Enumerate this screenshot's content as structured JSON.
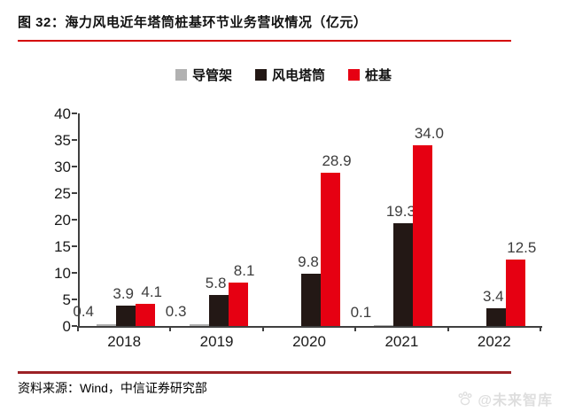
{
  "figure": {
    "title": "图 32：海力风电近年塔筒桩基环节业务营收情况（亿元）",
    "source_text": "资料来源：Wind，中信证券研究部",
    "watermark_text": "@未来智库"
  },
  "colors": {
    "title_underline": "#d40000",
    "source_rule": "#9c2126",
    "axis": "#404040",
    "value_label": "#3d3d3d",
    "watermark": "#dedede"
  },
  "chart_data": {
    "type": "bar",
    "title": "海力风电近年塔筒桩基环节业务营收情况（亿元）",
    "categories": [
      "2018",
      "2019",
      "2020",
      "2021",
      "2022"
    ],
    "series": [
      {
        "name": "导管架",
        "color": "#b1b1b1",
        "values": [
          0.4,
          0.3,
          null,
          0.1,
          null
        ]
      },
      {
        "name": "风电塔筒",
        "color": "#231815",
        "values": [
          3.9,
          5.8,
          9.8,
          19.3,
          3.4
        ]
      },
      {
        "name": "桩基",
        "color": "#e60012",
        "values": [
          4.1,
          8.1,
          28.9,
          34.0,
          12.5
        ]
      }
    ],
    "xlabel": "",
    "ylabel": "",
    "ylim": [
      0,
      40
    ],
    "ystep": 5,
    "yticks": [
      0,
      5,
      10,
      15,
      20,
      25,
      30,
      35,
      40
    ],
    "grid": false,
    "legend_position": "top",
    "data_labels": true
  }
}
